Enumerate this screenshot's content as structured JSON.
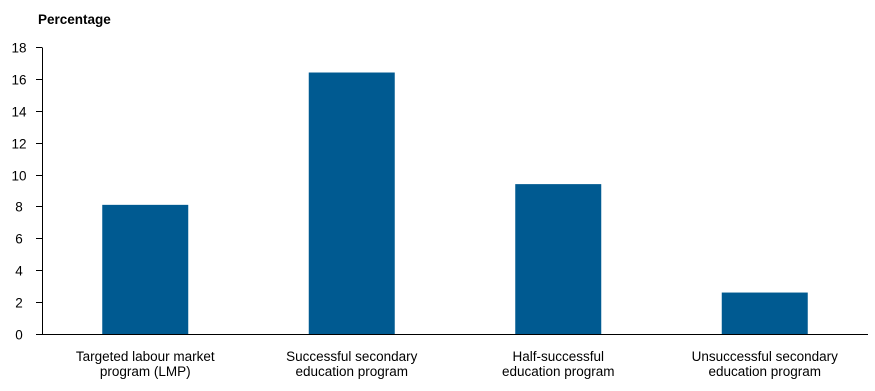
{
  "chart_data": {
    "type": "bar",
    "title": "",
    "xlabel": "",
    "ylabel": "Percentage",
    "ylim": [
      0,
      18
    ],
    "yticks": [
      0,
      2,
      4,
      6,
      8,
      10,
      12,
      14,
      16,
      18
    ],
    "categories": [
      [
        "Targeted labour market",
        "program (LMP)"
      ],
      [
        "Successful secondary",
        "education program"
      ],
      [
        "Half-successful",
        "education program"
      ],
      [
        "Unsuccessful secondary",
        "education program"
      ]
    ],
    "values": [
      8.1,
      16.4,
      9.4,
      2.6
    ],
    "bar_color": "#005a91",
    "axis_color": "#000000",
    "grid": false,
    "legend": "none"
  }
}
